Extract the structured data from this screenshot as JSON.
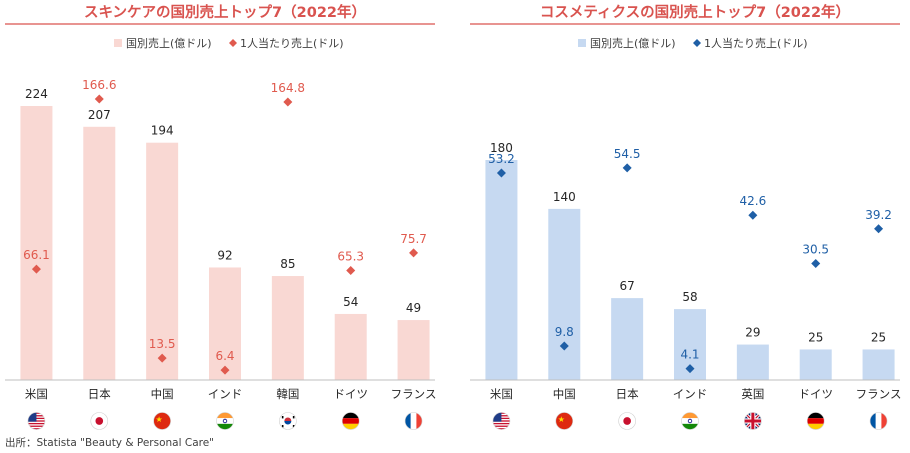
{
  "chart_data": [
    {
      "type": "bar",
      "title": "スキンケアの国別売上トップ7（2022年）",
      "title_color": "#d9534f",
      "categories": [
        "米国",
        "日本",
        "中国",
        "インド",
        "韓国",
        "ドイツ",
        "フランス"
      ],
      "flags": [
        "us",
        "jp",
        "cn",
        "in",
        "kr",
        "de",
        "fr"
      ],
      "series": [
        {
          "name": "国別売上(億ドル)",
          "kind": "bar",
          "color": "#f9d8d3",
          "values": [
            224,
            207,
            194,
            92,
            85,
            54,
            49
          ]
        },
        {
          "name": "1人当たり売上(ドル)",
          "kind": "scatter",
          "marker": "diamond",
          "color": "#e05a4e",
          "values": [
            66.1,
            166.6,
            13.5,
            6.4,
            164.8,
            65.3,
            75.7
          ]
        }
      ],
      "legend_position": "top",
      "grid": false
    },
    {
      "type": "bar",
      "title": "コスメティクスの国別売上トップ7（2022年）",
      "title_color": "#d9534f",
      "categories": [
        "米国",
        "中国",
        "日本",
        "インド",
        "英国",
        "ドイツ",
        "フランス"
      ],
      "flags": [
        "us",
        "cn",
        "jp",
        "in",
        "gb",
        "de",
        "fr"
      ],
      "series": [
        {
          "name": "国別売上(億ドル)",
          "kind": "bar",
          "color": "#c6d9f1",
          "values": [
            180,
            140,
            67,
            58,
            29,
            25,
            25
          ]
        },
        {
          "name": "1人当たり売上(ドル)",
          "kind": "scatter",
          "marker": "diamond",
          "color": "#1f5fa6",
          "values": [
            53.2,
            9.8,
            54.5,
            4.1,
            42.6,
            30.5,
            39.2
          ]
        }
      ],
      "legend_position": "top",
      "grid": false
    }
  ],
  "source": "出所：Statista \"Beauty & Personal Care\""
}
